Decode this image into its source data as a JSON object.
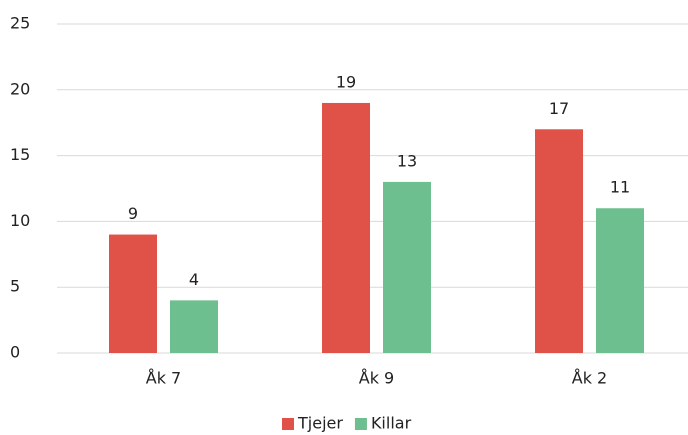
{
  "chart_data": {
    "type": "bar",
    "categories": [
      "Åk 7",
      "Åk 9",
      "Åk 2"
    ],
    "series": [
      {
        "name": "Tjejer",
        "color": "#e05247",
        "values": [
          9,
          19,
          17
        ]
      },
      {
        "name": "Killar",
        "color": "#6dbf8f",
        "values": [
          4,
          13,
          11
        ]
      }
    ],
    "ylim": [
      0,
      25
    ],
    "yticks": [
      0,
      5,
      10,
      15,
      20,
      25
    ],
    "grid": true,
    "legend": "bottom"
  }
}
